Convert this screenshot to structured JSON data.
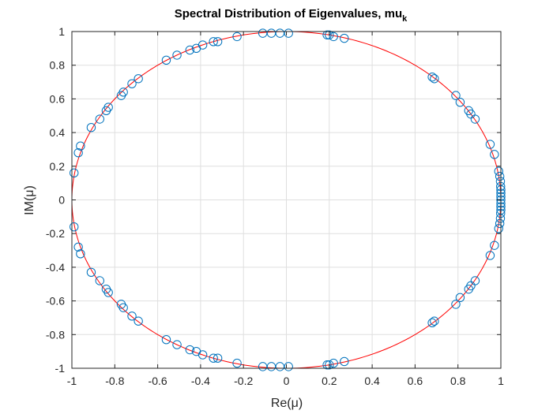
{
  "chart_data": {
    "type": "scatter",
    "title": "Spectral Distribution of Eigenvalues, mu",
    "title_subscript": "k",
    "xlabel": "Re(μ)",
    "ylabel": "IM(μ)",
    "xlim": [
      -1,
      1
    ],
    "ylim": [
      -1,
      1
    ],
    "xticks": [
      "-1",
      "-0.8",
      "-0.6",
      "-0.4",
      "-0.2",
      "0",
      "0.2",
      "0.4",
      "0.6",
      "0.8",
      "1"
    ],
    "yticks": [
      "-1",
      "-0.8",
      "-0.6",
      "-0.4",
      "-0.2",
      "0",
      "0.2",
      "0.4",
      "0.6",
      "0.8",
      "1"
    ],
    "grid": true,
    "colors": {
      "points": "#0072BD",
      "circle": "#FF0000",
      "grid": "#DFDFDF",
      "axes": "#262626"
    },
    "circle": {
      "center": [
        0,
        0
      ],
      "radius": 1
    },
    "points": [
      [
        0.01,
        0.99
      ],
      [
        -0.03,
        0.99
      ],
      [
        -0.07,
        0.99
      ],
      [
        -0.11,
        0.99
      ],
      [
        0.19,
        0.98
      ],
      [
        0.2,
        0.98
      ],
      [
        0.22,
        0.97
      ],
      [
        0.27,
        0.96
      ],
      [
        -0.23,
        0.97
      ],
      [
        -0.34,
        0.94
      ],
      [
        -0.32,
        0.94
      ],
      [
        -0.39,
        0.92
      ],
      [
        -0.42,
        0.9
      ],
      [
        -0.45,
        0.89
      ],
      [
        -0.51,
        0.86
      ],
      [
        -0.56,
        0.83
      ],
      [
        -0.69,
        0.72
      ],
      [
        -0.72,
        0.69
      ],
      [
        -0.76,
        0.64
      ],
      [
        -0.77,
        0.62
      ],
      [
        -0.83,
        0.55
      ],
      [
        -0.84,
        0.53
      ],
      [
        -0.87,
        0.48
      ],
      [
        -0.91,
        0.43
      ],
      [
        -0.96,
        0.32
      ],
      [
        -0.97,
        0.28
      ],
      [
        -0.99,
        0.16
      ],
      [
        -0.99,
        -0.16
      ],
      [
        -0.97,
        -0.28
      ],
      [
        -0.96,
        -0.32
      ],
      [
        -0.91,
        -0.43
      ],
      [
        -0.87,
        -0.48
      ],
      [
        -0.84,
        -0.53
      ],
      [
        -0.83,
        -0.55
      ],
      [
        -0.77,
        -0.62
      ],
      [
        -0.76,
        -0.64
      ],
      [
        -0.72,
        -0.69
      ],
      [
        -0.69,
        -0.72
      ],
      [
        -0.56,
        -0.83
      ],
      [
        -0.51,
        -0.86
      ],
      [
        -0.45,
        -0.89
      ],
      [
        -0.42,
        -0.9
      ],
      [
        -0.39,
        -0.92
      ],
      [
        -0.34,
        -0.94
      ],
      [
        -0.32,
        -0.94
      ],
      [
        -0.23,
        -0.97
      ],
      [
        -0.11,
        -0.99
      ],
      [
        -0.07,
        -0.99
      ],
      [
        -0.03,
        -0.99
      ],
      [
        0.01,
        -0.99
      ],
      [
        0.19,
        -0.98
      ],
      [
        0.2,
        -0.98
      ],
      [
        0.22,
        -0.97
      ],
      [
        0.27,
        -0.96
      ],
      [
        0.68,
        0.73
      ],
      [
        0.69,
        0.72
      ],
      [
        0.79,
        0.62
      ],
      [
        0.81,
        0.58
      ],
      [
        0.85,
        0.53
      ],
      [
        0.86,
        0.51
      ],
      [
        0.88,
        0.48
      ],
      [
        0.95,
        0.33
      ],
      [
        0.97,
        0.27
      ],
      [
        0.68,
        -0.73
      ],
      [
        0.69,
        -0.72
      ],
      [
        0.79,
        -0.62
      ],
      [
        0.81,
        -0.58
      ],
      [
        0.85,
        -0.53
      ],
      [
        0.86,
        -0.51
      ],
      [
        0.88,
        -0.48
      ],
      [
        0.95,
        -0.33
      ],
      [
        0.97,
        -0.27
      ],
      [
        0.99,
        0.17
      ],
      [
        0.995,
        0.14
      ],
      [
        0.998,
        0.11
      ],
      [
        0.999,
        0.08
      ],
      [
        1.0,
        0.06
      ],
      [
        1.0,
        0.04
      ],
      [
        1.0,
        0.02
      ],
      [
        1.0,
        0.0
      ],
      [
        1.0,
        -0.02
      ],
      [
        1.0,
        -0.04
      ],
      [
        1.0,
        -0.06
      ],
      [
        0.999,
        -0.08
      ],
      [
        0.998,
        -0.11
      ],
      [
        0.995,
        -0.14
      ],
      [
        0.99,
        -0.17
      ]
    ]
  }
}
